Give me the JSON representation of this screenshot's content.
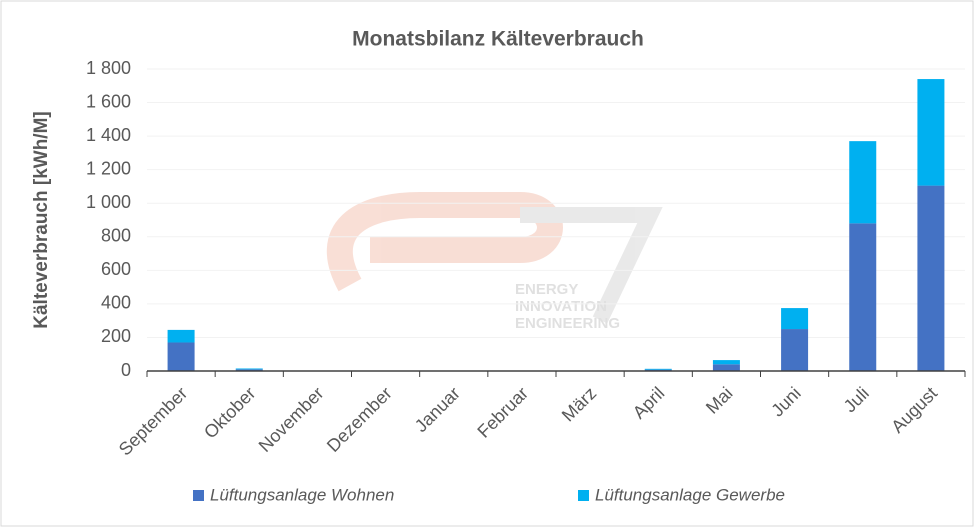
{
  "chart_data": {
    "type": "stacked_bar",
    "title": "Monatsbilanz Kälteverbrauch",
    "ylabel": "Kälteverbrauch  [kWh/M]",
    "categories": [
      "September",
      "Oktober",
      "November",
      "Dezember",
      "Januar",
      "Februar",
      "März",
      "April",
      "Mai",
      "Juni",
      "Juli",
      "August"
    ],
    "series": [
      {
        "name": "Lüftungsanlage Wohnen",
        "color": "#4472c4",
        "values": [
          170,
          10,
          0,
          0,
          0,
          0,
          0,
          8,
          40,
          250,
          880,
          1105
        ]
      },
      {
        "name": "Lüftungsanlage Gewerbe",
        "color": "#00b0f0",
        "values": [
          75,
          5,
          0,
          0,
          0,
          0,
          0,
          5,
          25,
          125,
          490,
          635
        ]
      }
    ],
    "ylim": [
      0,
      1800
    ],
    "yticks": [
      0,
      200,
      400,
      600,
      800,
      {
        "value": 1000,
        "label": "1 000"
      },
      {
        "value": 1200,
        "label": "1 200"
      },
      {
        "value": 1400,
        "label": "1 400"
      },
      {
        "value": 1600,
        "label": "1 600"
      },
      {
        "value": 1800,
        "label": "1 800"
      }
    ],
    "grid": true,
    "legend": "bottom",
    "watermark": [
      "ENERGY",
      "INNOVATION",
      "ENGINEERING"
    ]
  }
}
